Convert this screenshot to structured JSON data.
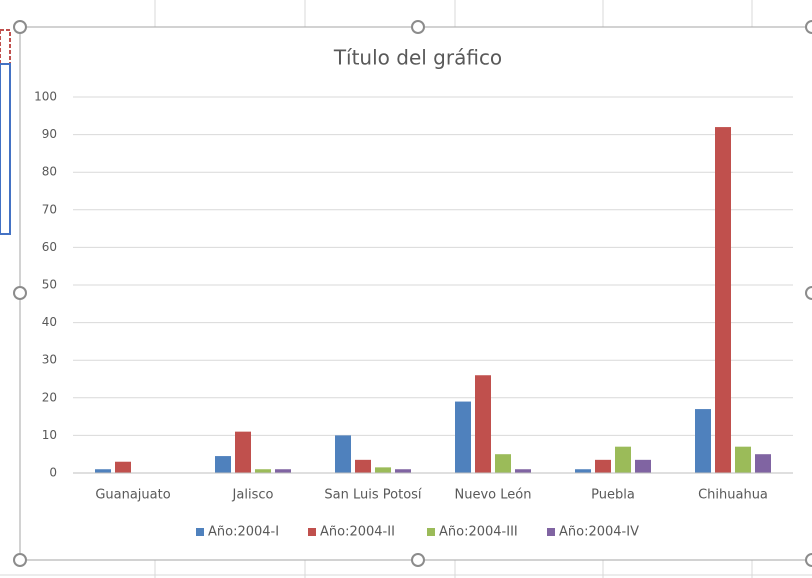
{
  "chart_data": {
    "type": "bar",
    "title": "Título del gráfico",
    "categories": [
      "Guanajuato",
      "Jalisco",
      "San Luis Potosí",
      "Nuevo León",
      "Puebla",
      "Chihuahua"
    ],
    "series": [
      {
        "name": "Año:2004-I",
        "color": "#4f81bd",
        "values": [
          1,
          4.5,
          10,
          19,
          1,
          17
        ]
      },
      {
        "name": "Año:2004-II",
        "color": "#c0504d",
        "values": [
          3,
          11,
          3.5,
          26,
          3.5,
          92
        ]
      },
      {
        "name": "Año:2004-III",
        "color": "#9bbb59",
        "values": [
          0,
          1,
          1.5,
          5,
          7,
          7
        ]
      },
      {
        "name": "Año:2004-IV",
        "color": "#8064a2",
        "values": [
          0,
          1,
          1,
          1,
          3.5,
          5
        ]
      }
    ],
    "ylim": [
      0,
      100
    ],
    "yticks": [
      0,
      10,
      20,
      30,
      40,
      50,
      60,
      70,
      80,
      90,
      100
    ],
    "grid": true,
    "legend": "bottom"
  }
}
